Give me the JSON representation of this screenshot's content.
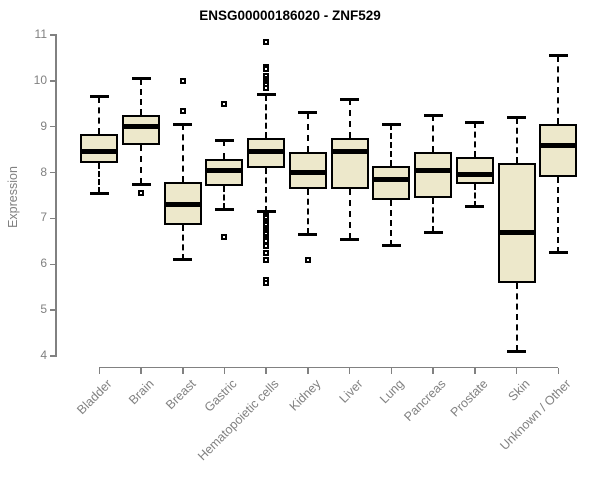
{
  "chart_data": {
    "type": "boxplot",
    "title": "ENSG00000186020 - ZNF529",
    "ylabel": "Expression",
    "ylim": [
      4,
      11
    ],
    "yticks": [
      4,
      5,
      6,
      7,
      8,
      9,
      10,
      11
    ],
    "grid": false,
    "legend": "none",
    "categories": [
      "Bladder",
      "Brain",
      "Breast",
      "Gastric",
      "Hematopoietic cells",
      "Kidney",
      "Liver",
      "Lung",
      "Pancreas",
      "Prostate",
      "Skin",
      "Unknown / Other"
    ],
    "boxes": [
      {
        "category": "Bladder",
        "whisker_low": 7.55,
        "q1": 8.2,
        "median": 8.45,
        "q3": 8.85,
        "whisker_high": 9.65,
        "outliers": []
      },
      {
        "category": "Brain",
        "whisker_low": 7.75,
        "q1": 8.6,
        "median": 9.0,
        "q3": 9.25,
        "whisker_high": 10.05,
        "outliers": [
          7.55
        ]
      },
      {
        "category": "Breast",
        "whisker_low": 6.1,
        "q1": 6.85,
        "median": 7.3,
        "q3": 7.8,
        "whisker_high": 9.05,
        "outliers": [
          10.0,
          9.35
        ]
      },
      {
        "category": "Gastric",
        "whisker_low": 7.2,
        "q1": 7.7,
        "median": 8.05,
        "q3": 8.3,
        "whisker_high": 8.7,
        "outliers": [
          9.5,
          6.6
        ]
      },
      {
        "category": "Hematopoietic cells",
        "whisker_low": 7.15,
        "q1": 8.1,
        "median": 8.45,
        "q3": 8.75,
        "whisker_high": 9.7,
        "outliers": [
          10.85,
          10.3,
          10.25,
          10.1,
          10.05,
          10.0,
          9.95,
          9.9,
          9.85,
          7.05,
          7.0,
          6.95,
          6.9,
          6.85,
          6.8,
          6.75,
          6.7,
          6.65,
          6.6,
          6.55,
          6.5,
          6.4,
          6.25,
          6.1,
          5.65,
          5.6
        ]
      },
      {
        "category": "Kidney",
        "whisker_low": 6.65,
        "q1": 7.65,
        "median": 8.0,
        "q3": 8.45,
        "whisker_high": 9.3,
        "outliers": [
          6.1
        ]
      },
      {
        "category": "Liver",
        "whisker_low": 6.55,
        "q1": 7.65,
        "median": 8.45,
        "q3": 8.75,
        "whisker_high": 9.6,
        "outliers": []
      },
      {
        "category": "Lung",
        "whisker_low": 6.4,
        "q1": 7.4,
        "median": 7.85,
        "q3": 8.15,
        "whisker_high": 9.05,
        "outliers": []
      },
      {
        "category": "Pancreas",
        "whisker_low": 6.7,
        "q1": 7.45,
        "median": 8.05,
        "q3": 8.45,
        "whisker_high": 9.25,
        "outliers": []
      },
      {
        "category": "Prostate",
        "whisker_low": 7.25,
        "q1": 7.75,
        "median": 7.95,
        "q3": 8.35,
        "whisker_high": 9.1,
        "outliers": []
      },
      {
        "category": "Skin",
        "whisker_low": 4.1,
        "q1": 5.6,
        "median": 6.7,
        "q3": 8.2,
        "whisker_high": 9.2,
        "outliers": []
      },
      {
        "category": "Unknown / Other",
        "whisker_low": 6.25,
        "q1": 7.9,
        "median": 8.6,
        "q3": 9.05,
        "whisker_high": 10.55,
        "outliers": []
      }
    ],
    "colors": {
      "box_fill": "#EDE8CB",
      "line": "#000000",
      "axis": "#818181",
      "title": "#000000"
    }
  }
}
